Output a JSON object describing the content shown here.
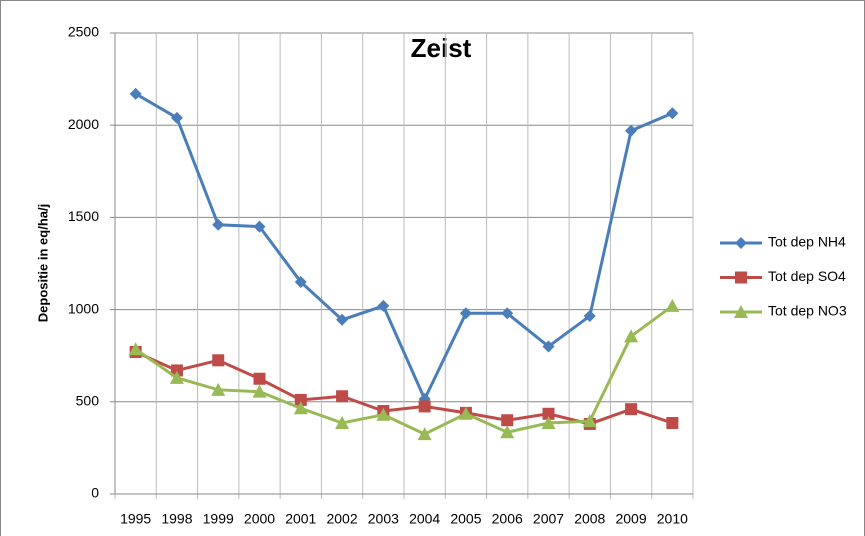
{
  "chart_data": {
    "type": "line",
    "title": "Zeist",
    "y_label": "Depositie in eq/ha/j",
    "categories": [
      "1995",
      "1998",
      "1999",
      "2000",
      "2001",
      "2002",
      "2003",
      "2004",
      "2005",
      "2006",
      "2007",
      "2008",
      "2009",
      "2010"
    ],
    "series": [
      {
        "name": "Tot dep NH4",
        "color": "#4a7ebb",
        "marker": "diamond",
        "values": [
          2170,
          2040,
          1460,
          1450,
          1150,
          945,
          1020,
          515,
          980,
          980,
          800,
          965,
          1970,
          2065
        ]
      },
      {
        "name": "Tot dep SO4",
        "color": "#be4b48",
        "marker": "square",
        "values": [
          770,
          670,
          725,
          625,
          510,
          530,
          450,
          475,
          440,
          400,
          435,
          380,
          460,
          385
        ]
      },
      {
        "name": "Tot dep NO3",
        "color": "#98b954",
        "marker": "triangle",
        "values": [
          785,
          630,
          565,
          555,
          465,
          385,
          430,
          325,
          435,
          335,
          385,
          395,
          855,
          1020
        ]
      }
    ],
    "ylim": [
      0,
      2500
    ],
    "yticks": [
      0,
      500,
      1000,
      1500,
      2000,
      2500
    ],
    "grid": true,
    "legend": "right"
  }
}
